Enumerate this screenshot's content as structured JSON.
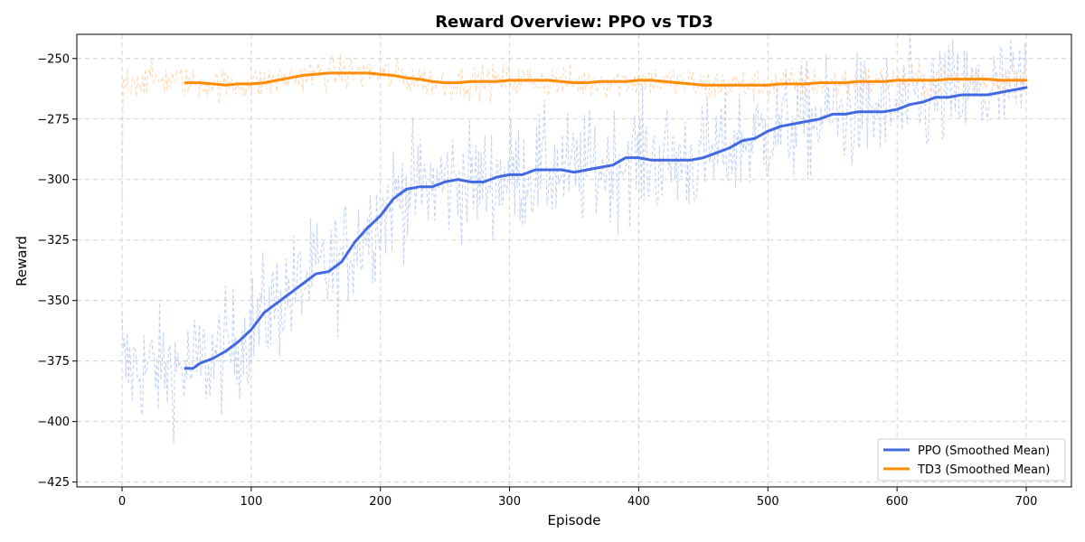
{
  "chart_data": {
    "type": "line",
    "title": "Reward Overview: PPO vs TD3",
    "xlabel": "Episode",
    "ylabel": "Reward",
    "xlim": [
      -35,
      735
    ],
    "ylim": [
      -427,
      -240
    ],
    "xticks": [
      0,
      100,
      200,
      300,
      400,
      500,
      600,
      700
    ],
    "yticks": [
      -425,
      -400,
      -375,
      -350,
      -325,
      -300,
      -275,
      -250
    ],
    "grid": true,
    "legend_position": "bottom-right",
    "colors": {
      "ppo": "#4169e1",
      "td3": "#ff8c00",
      "raw_ppo": "#aabfee",
      "raw_td3": "#ffc99a"
    },
    "series": [
      {
        "name": "PPO (Smoothed Mean)",
        "color": "#4169e1",
        "style": "solid",
        "x": [
          49,
          55,
          60,
          70,
          80,
          90,
          100,
          110,
          120,
          130,
          140,
          150,
          160,
          170,
          180,
          190,
          200,
          210,
          220,
          230,
          240,
          250,
          260,
          270,
          280,
          290,
          300,
          310,
          320,
          330,
          340,
          350,
          360,
          370,
          380,
          390,
          400,
          410,
          420,
          430,
          440,
          450,
          460,
          470,
          480,
          490,
          500,
          510,
          520,
          530,
          540,
          550,
          560,
          570,
          580,
          590,
          600,
          610,
          620,
          630,
          640,
          650,
          660,
          670,
          680,
          690,
          700
        ],
        "y": [
          -378,
          -378,
          -376,
          -374,
          -371,
          -367,
          -362,
          -355,
          -351,
          -347,
          -343,
          -339,
          -338,
          -334,
          -326,
          -320,
          -315,
          -308,
          -304,
          -303,
          -303,
          -301,
          -300,
          -301,
          -301,
          -299,
          -298,
          -298,
          -296,
          -296,
          -296,
          -297,
          -296,
          -295,
          -294,
          -291,
          -291,
          -292,
          -292,
          -292,
          -292,
          -291,
          -289,
          -287,
          -284,
          -283,
          -280,
          -278,
          -277,
          -276,
          -275,
          -273,
          -273,
          -272,
          -272,
          -272,
          -271,
          -269,
          -268,
          -266,
          -266,
          -265,
          -265,
          -265,
          -264,
          -263,
          -262
        ]
      },
      {
        "name": "TD3 (Smoothed Mean)",
        "color": "#ff8c00",
        "style": "solid",
        "x": [
          49,
          55,
          60,
          70,
          80,
          90,
          100,
          110,
          120,
          130,
          140,
          150,
          160,
          170,
          180,
          190,
          200,
          210,
          220,
          230,
          240,
          250,
          260,
          270,
          280,
          290,
          300,
          310,
          320,
          330,
          340,
          350,
          360,
          370,
          380,
          390,
          400,
          410,
          420,
          430,
          440,
          450,
          460,
          470,
          480,
          490,
          500,
          510,
          520,
          530,
          540,
          550,
          560,
          570,
          580,
          590,
          600,
          610,
          620,
          630,
          640,
          650,
          660,
          670,
          680,
          690,
          700
        ],
        "y": [
          -260,
          -260,
          -260,
          -260.5,
          -261,
          -260.5,
          -260.5,
          -260,
          -259,
          -258,
          -257,
          -256.5,
          -256,
          -256,
          -256,
          -256,
          -256.5,
          -257,
          -258,
          -258.5,
          -259.5,
          -260,
          -260,
          -259.5,
          -259.5,
          -259.5,
          -259,
          -259,
          -259,
          -259,
          -259.5,
          -260,
          -260,
          -259.5,
          -259.5,
          -259.5,
          -259,
          -259,
          -259.5,
          -260,
          -260.5,
          -261,
          -261,
          -261,
          -261,
          -261,
          -261,
          -260.5,
          -260.5,
          -260.5,
          -260,
          -260,
          -260,
          -259.5,
          -259.5,
          -259.5,
          -259,
          -259,
          -259,
          -259,
          -258.5,
          -258.5,
          -258.5,
          -258.5,
          -259,
          -259,
          -259
        ]
      }
    ]
  }
}
